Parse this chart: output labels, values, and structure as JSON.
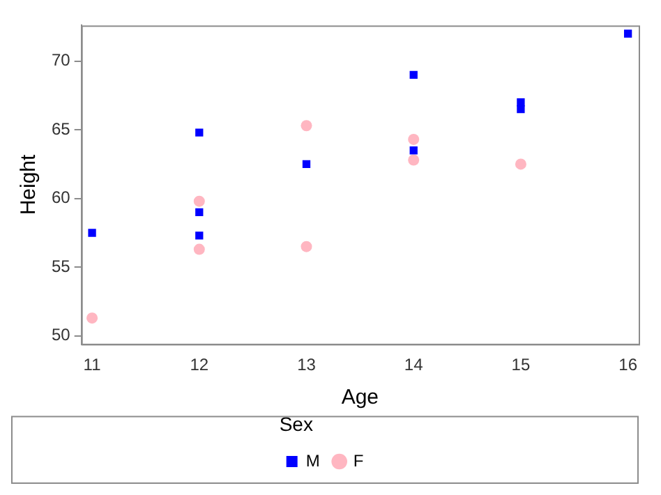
{
  "chart_data": {
    "type": "scatter",
    "xlabel": "Age",
    "ylabel": "Height",
    "legend_title": "Sex",
    "legend": "bottom",
    "grid": false,
    "xlim": [
      10.9,
      16.1
    ],
    "xticks": [
      11,
      12,
      13,
      14,
      15,
      16
    ],
    "ylim": [
      49.4,
      72.6
    ],
    "yticks": [
      50,
      55,
      60,
      65,
      70
    ],
    "series": [
      {
        "name": "M",
        "color": "#0000ff",
        "marker": "square",
        "x": [
          14,
          14,
          12,
          13,
          12,
          16,
          12,
          15,
          11,
          15
        ],
        "values": [
          69.0,
          63.5,
          57.3,
          62.5,
          59.0,
          72.0,
          64.8,
          67.0,
          57.5,
          66.5
        ]
      },
      {
        "name": "F",
        "color": "#ffb6c1",
        "marker": "circle",
        "x": [
          13,
          13,
          14,
          12,
          15,
          11,
          14,
          12
        ],
        "values": [
          56.5,
          65.3,
          62.8,
          59.8,
          62.5,
          51.3,
          64.3,
          56.3
        ]
      }
    ]
  }
}
